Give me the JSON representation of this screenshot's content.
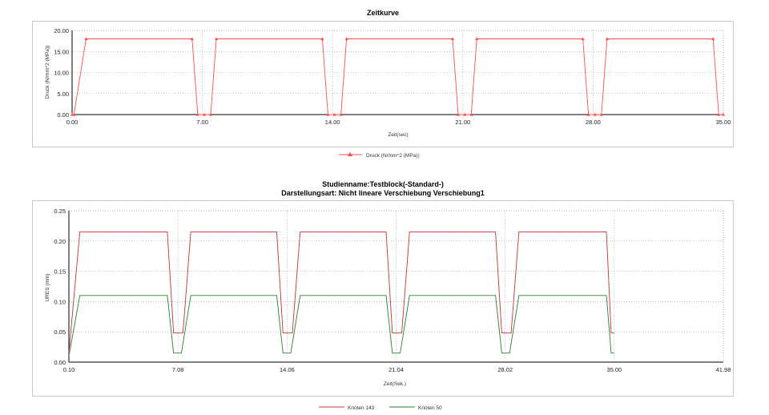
{
  "chart_data": [
    {
      "type": "line",
      "title": "Zeitkurve",
      "xlabel": "Zeit(sec)",
      "ylabel": "Druck (N/mm^2 (MPa))",
      "xlim": [
        0,
        35
      ],
      "ylim": [
        0,
        20
      ],
      "xticks": [
        "0.00",
        "7.00",
        "14.00",
        "21.00",
        "28.00",
        "35.00"
      ],
      "yticks": [
        "0.00",
        "5.00",
        "10.00",
        "15.00",
        "20.00"
      ],
      "grid": true,
      "legend_position": "bottom-center",
      "series": [
        {
          "name": "Druck (N/mm^2 (MPa))",
          "color": "#ff4d4d",
          "marker": "triangle",
          "points": [
            [
              0,
              0
            ],
            [
              0.1,
              0
            ],
            [
              0.75,
              18
            ],
            [
              6.45,
              18
            ],
            [
              6.75,
              0
            ],
            [
              7.1,
              0
            ],
            [
              7.45,
              0
            ],
            [
              7.75,
              18
            ],
            [
              13.45,
              18
            ],
            [
              13.75,
              0
            ],
            [
              14.1,
              0
            ],
            [
              14.45,
              0
            ],
            [
              14.75,
              18
            ],
            [
              20.45,
              18
            ],
            [
              20.75,
              0
            ],
            [
              21.1,
              0
            ],
            [
              21.45,
              0
            ],
            [
              21.75,
              18
            ],
            [
              27.45,
              18
            ],
            [
              27.75,
              0
            ],
            [
              28.1,
              0
            ],
            [
              28.45,
              0
            ],
            [
              28.75,
              18
            ],
            [
              34.45,
              18
            ],
            [
              34.75,
              0
            ],
            [
              35,
              0
            ]
          ]
        }
      ]
    },
    {
      "type": "line",
      "title": "Studienname:Testblock(-Standard-)",
      "subtitle": "Darstellungsart: Nicht lineare Verschiebung Verschiebung1",
      "xlabel": "Zeit(Sek.)",
      "ylabel": "URES (mm)",
      "xlim": [
        0.1,
        41.98
      ],
      "ylim": [
        0,
        0.25
      ],
      "xticks": [
        "0.10",
        "7.08",
        "14.06",
        "21.04",
        "28.02",
        "35.00",
        "41.98"
      ],
      "yticks": [
        "0.00",
        "0.05",
        "0.10",
        "0.15",
        "0.20",
        "0.25"
      ],
      "grid": true,
      "legend_position": "bottom-center",
      "series": [
        {
          "name": "Knoten 143",
          "color": "#c83232",
          "points": [
            [
              0.1,
              0.015
            ],
            [
              0.8,
              0.215
            ],
            [
              6.4,
              0.215
            ],
            [
              6.8,
              0.048
            ],
            [
              7.4,
              0.048
            ],
            [
              7.9,
              0.215
            ],
            [
              13.4,
              0.215
            ],
            [
              13.8,
              0.048
            ],
            [
              14.4,
              0.048
            ],
            [
              14.9,
              0.215
            ],
            [
              20.4,
              0.215
            ],
            [
              20.8,
              0.048
            ],
            [
              21.4,
              0.048
            ],
            [
              21.9,
              0.215
            ],
            [
              27.4,
              0.215
            ],
            [
              27.8,
              0.048
            ],
            [
              28.4,
              0.048
            ],
            [
              28.9,
              0.215
            ],
            [
              34.5,
              0.215
            ],
            [
              34.8,
              0.048
            ],
            [
              35,
              0.048
            ]
          ]
        },
        {
          "name": "Knoten 50",
          "color": "#2e7d2e",
          "points": [
            [
              0.1,
              0.01
            ],
            [
              0.8,
              0.11
            ],
            [
              6.4,
              0.11
            ],
            [
              6.8,
              0.015
            ],
            [
              7.3,
              0.015
            ],
            [
              7.9,
              0.11
            ],
            [
              13.4,
              0.11
            ],
            [
              13.8,
              0.015
            ],
            [
              14.3,
              0.015
            ],
            [
              14.9,
              0.11
            ],
            [
              20.4,
              0.11
            ],
            [
              20.8,
              0.015
            ],
            [
              21.3,
              0.015
            ],
            [
              21.9,
              0.11
            ],
            [
              27.4,
              0.11
            ],
            [
              27.8,
              0.015
            ],
            [
              28.3,
              0.015
            ],
            [
              28.9,
              0.11
            ],
            [
              34.5,
              0.11
            ],
            [
              34.8,
              0.015
            ],
            [
              35,
              0.015
            ]
          ]
        }
      ]
    }
  ]
}
